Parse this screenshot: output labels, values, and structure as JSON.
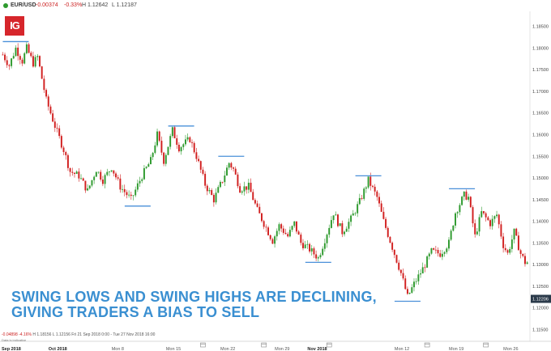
{
  "header": {
    "symbol": "EUR/USD",
    "change": "-0.00374",
    "change_pct": "-0.33%",
    "high": "H 1.12642",
    "low": "L 1.12187"
  },
  "logo": {
    "text": "IG"
  },
  "headline": {
    "line1": "SWING LOWS AND SWING HIGHS ARE DECLINING,",
    "line2": "GIVING TRADERS A BIAS TO SELL"
  },
  "footer": {
    "info_change": "-0.04898",
    "info_pct": "-4.16%",
    "info_rest": "H 1.18156  L 1.12156  Fri 21 Sep 2018 0:00 - Tue 27 Nov 2018 16:00",
    "note": "Data is indicative"
  },
  "colors": {
    "up": "#2e9a2e",
    "down": "#d11f1f",
    "swing": "#4a90d9",
    "price_tag": "#2b3a4a",
    "headline": "#3a8fd1"
  },
  "icons": [
    "calendar-icon"
  ],
  "chart_data": {
    "type": "candlestick",
    "symbol": "EUR/USD",
    "ylim": [
      1.113,
      1.1885
    ],
    "y_ticks": [
      "1.18500",
      "1.18000",
      "1.17500",
      "1.17000",
      "1.16500",
      "1.16000",
      "1.15500",
      "1.15000",
      "1.14500",
      "1.14000",
      "1.13500",
      "1.13000",
      "1.12500",
      "1.12000",
      "1.11500"
    ],
    "y_tick_values": [
      1.185,
      1.18,
      1.175,
      1.17,
      1.165,
      1.16,
      1.155,
      1.15,
      1.145,
      1.14,
      1.135,
      1.13,
      1.125,
      1.12,
      1.115
    ],
    "current_price": "1.12206",
    "current_price_value": 1.12206,
    "x_labels": [
      {
        "label": "Sep 2018",
        "bold": true,
        "idx": 0
      },
      {
        "label": "Oct 2018",
        "bold": true,
        "idx": 24
      },
      {
        "label": "Mon 8",
        "bold": false,
        "idx": 53
      },
      {
        "label": "Mon 15",
        "bold": false,
        "idx": 78
      },
      {
        "label": "Mon 22",
        "bold": false,
        "idx": 103
      },
      {
        "label": "Mon 29",
        "bold": false,
        "idx": 128
      },
      {
        "label": "Nov 2018",
        "bold": true,
        "idx": 143
      },
      {
        "label": "Mon 12",
        "bold": false,
        "idx": 183
      },
      {
        "label": "Mon 19",
        "bold": false,
        "idx": 208
      },
      {
        "label": "Mon 26",
        "bold": false,
        "idx": 233
      }
    ],
    "calendar_marks": [
      92,
      120,
      150,
      195,
      222
    ],
    "anchors": [
      [
        0,
        1.1785
      ],
      [
        3,
        1.176
      ],
      [
        6,
        1.18
      ],
      [
        9,
        1.177
      ],
      [
        11,
        1.18
      ],
      [
        14,
        1.1765
      ],
      [
        16,
        1.178
      ],
      [
        20,
        1.168
      ],
      [
        24,
        1.162
      ],
      [
        28,
        1.1565
      ],
      [
        31,
        1.1515
      ],
      [
        35,
        1.1505
      ],
      [
        39,
        1.147
      ],
      [
        43,
        1.152
      ],
      [
        46,
        1.1495
      ],
      [
        50,
        1.1525
      ],
      [
        54,
        1.148
      ],
      [
        59,
        1.145
      ],
      [
        64,
        1.1505
      ],
      [
        68,
        1.154
      ],
      [
        71,
        1.16
      ],
      [
        74,
        1.154
      ],
      [
        78,
        1.161
      ],
      [
        81,
        1.157
      ],
      [
        86,
        1.159
      ],
      [
        89,
        1.155
      ],
      [
        93,
        1.1485
      ],
      [
        97,
        1.145
      ],
      [
        101,
        1.1495
      ],
      [
        104,
        1.1535
      ],
      [
        106,
        1.152
      ],
      [
        109,
        1.1475
      ],
      [
        113,
        1.148
      ],
      [
        117,
        1.1425
      ],
      [
        121,
        1.1385
      ],
      [
        124,
        1.1355
      ],
      [
        127,
        1.139
      ],
      [
        131,
        1.1365
      ],
      [
        134,
        1.1395
      ],
      [
        137,
        1.135
      ],
      [
        141,
        1.1335
      ],
      [
        145,
        1.1315
      ],
      [
        148,
        1.1358
      ],
      [
        152,
        1.142
      ],
      [
        156,
        1.1375
      ],
      [
        160,
        1.1405
      ],
      [
        164,
        1.1445
      ],
      [
        168,
        1.1495
      ],
      [
        172,
        1.1455
      ],
      [
        175,
        1.14
      ],
      [
        179,
        1.134
      ],
      [
        183,
        1.128
      ],
      [
        186,
        1.1225
      ],
      [
        189,
        1.1255
      ],
      [
        193,
        1.129
      ],
      [
        197,
        1.133
      ],
      [
        201,
        1.1325
      ],
      [
        205,
        1.135
      ],
      [
        208,
        1.142
      ],
      [
        212,
        1.146
      ],
      [
        214,
        1.1455
      ],
      [
        217,
        1.1365
      ],
      [
        220,
        1.142
      ],
      [
        224,
        1.1395
      ],
      [
        227,
        1.1415
      ],
      [
        230,
        1.1345
      ],
      [
        232,
        1.1325
      ],
      [
        235,
        1.1375
      ],
      [
        238,
        1.1325
      ],
      [
        240,
        1.1305
      ]
    ],
    "swing_highs": [
      {
        "idx": 6,
        "value": 1.1815
      },
      {
        "idx": 82,
        "value": 1.162
      },
      {
        "idx": 105,
        "value": 1.155
      },
      {
        "idx": 168,
        "value": 1.1505
      },
      {
        "idx": 211,
        "value": 1.1475
      }
    ],
    "swing_lows": [
      {
        "idx": 62,
        "value": 1.1435
      },
      {
        "idx": 145,
        "value": 1.1305
      },
      {
        "idx": 186,
        "value": 1.1215
      }
    ]
  }
}
